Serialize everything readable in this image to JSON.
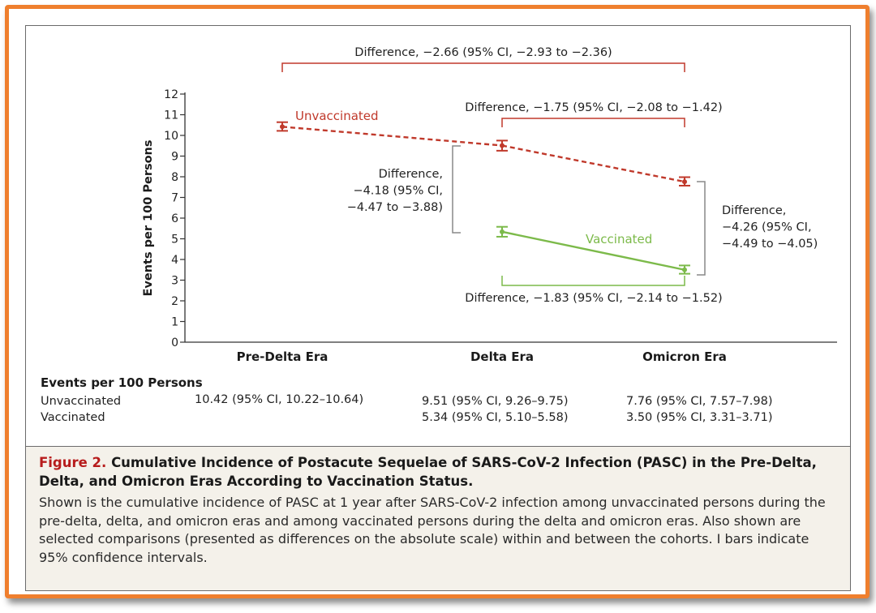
{
  "chart_data": {
    "type": "line",
    "categories": [
      "Pre-Delta Era",
      "Delta Era",
      "Omicron Era"
    ],
    "ylabel": "Events per 100 Persons",
    "ylim": [
      0,
      12
    ],
    "yticks": [
      "0",
      "1",
      "2",
      "3",
      "4",
      "5",
      "6",
      "7",
      "8",
      "9",
      "10",
      "11",
      "12"
    ],
    "series": [
      {
        "name": "Unvaccinated",
        "color": "#c0392b",
        "style": "dashed",
        "values": [
          10.42,
          9.51,
          7.76
        ],
        "ci_low": [
          10.22,
          9.26,
          7.57
        ],
        "ci_high": [
          10.64,
          9.75,
          7.98
        ]
      },
      {
        "name": "Vaccinated",
        "color": "#7cba4a",
        "style": "solid",
        "values": [
          null,
          5.34,
          3.5
        ],
        "ci_low": [
          null,
          5.1,
          3.31
        ],
        "ci_high": [
          null,
          5.58,
          3.71
        ]
      }
    ],
    "annotations": {
      "top": "Difference, −2.66 (95% CI, −2.93 to −2.36)",
      "mid_top": "Difference, −1.75 (95% CI, −2.08 to −1.42)",
      "left": [
        "Difference,",
        "−4.18 (95% CI,",
        "−4.47 to −3.88)"
      ],
      "right": [
        "Difference,",
        "−4.26 (95% CI,",
        "−4.49 to −4.05)"
      ],
      "bottom": "Difference, −1.83 (95% CI, −2.14 to −1.52)"
    },
    "table": {
      "header": "Events per 100 Persons",
      "rows": [
        {
          "label": "Unvaccinated",
          "cells": [
            "10.42 (95% CI, 10.22–10.64)",
            "9.51 (95% CI, 9.26–9.75)",
            "7.76 (95% CI, 7.57–7.98)"
          ]
        },
        {
          "label": "Vaccinated",
          "cells": [
            "",
            "5.34 (95% CI, 5.10–5.58)",
            "3.50 (95% CI, 3.31–3.71)"
          ]
        }
      ]
    }
  },
  "caption": {
    "label": "Figure 2.",
    "title": "Cumulative Incidence of Postacute Sequelae of SARS-CoV-2 Infection (PASC) in the Pre-Delta, Delta, and Omicron Eras According to Vaccination Status.",
    "body": "Shown is the cumulative incidence of PASC at 1 year after SARS-CoV-2 infection among unvaccinated persons during the pre-delta, delta, and omicron eras and among vaccinated persons during the delta and omicron eras. Also shown are selected comparisons (presented as differences on the absolute scale) within and between the cohorts. I bars indicate 95% confidence intervals."
  }
}
